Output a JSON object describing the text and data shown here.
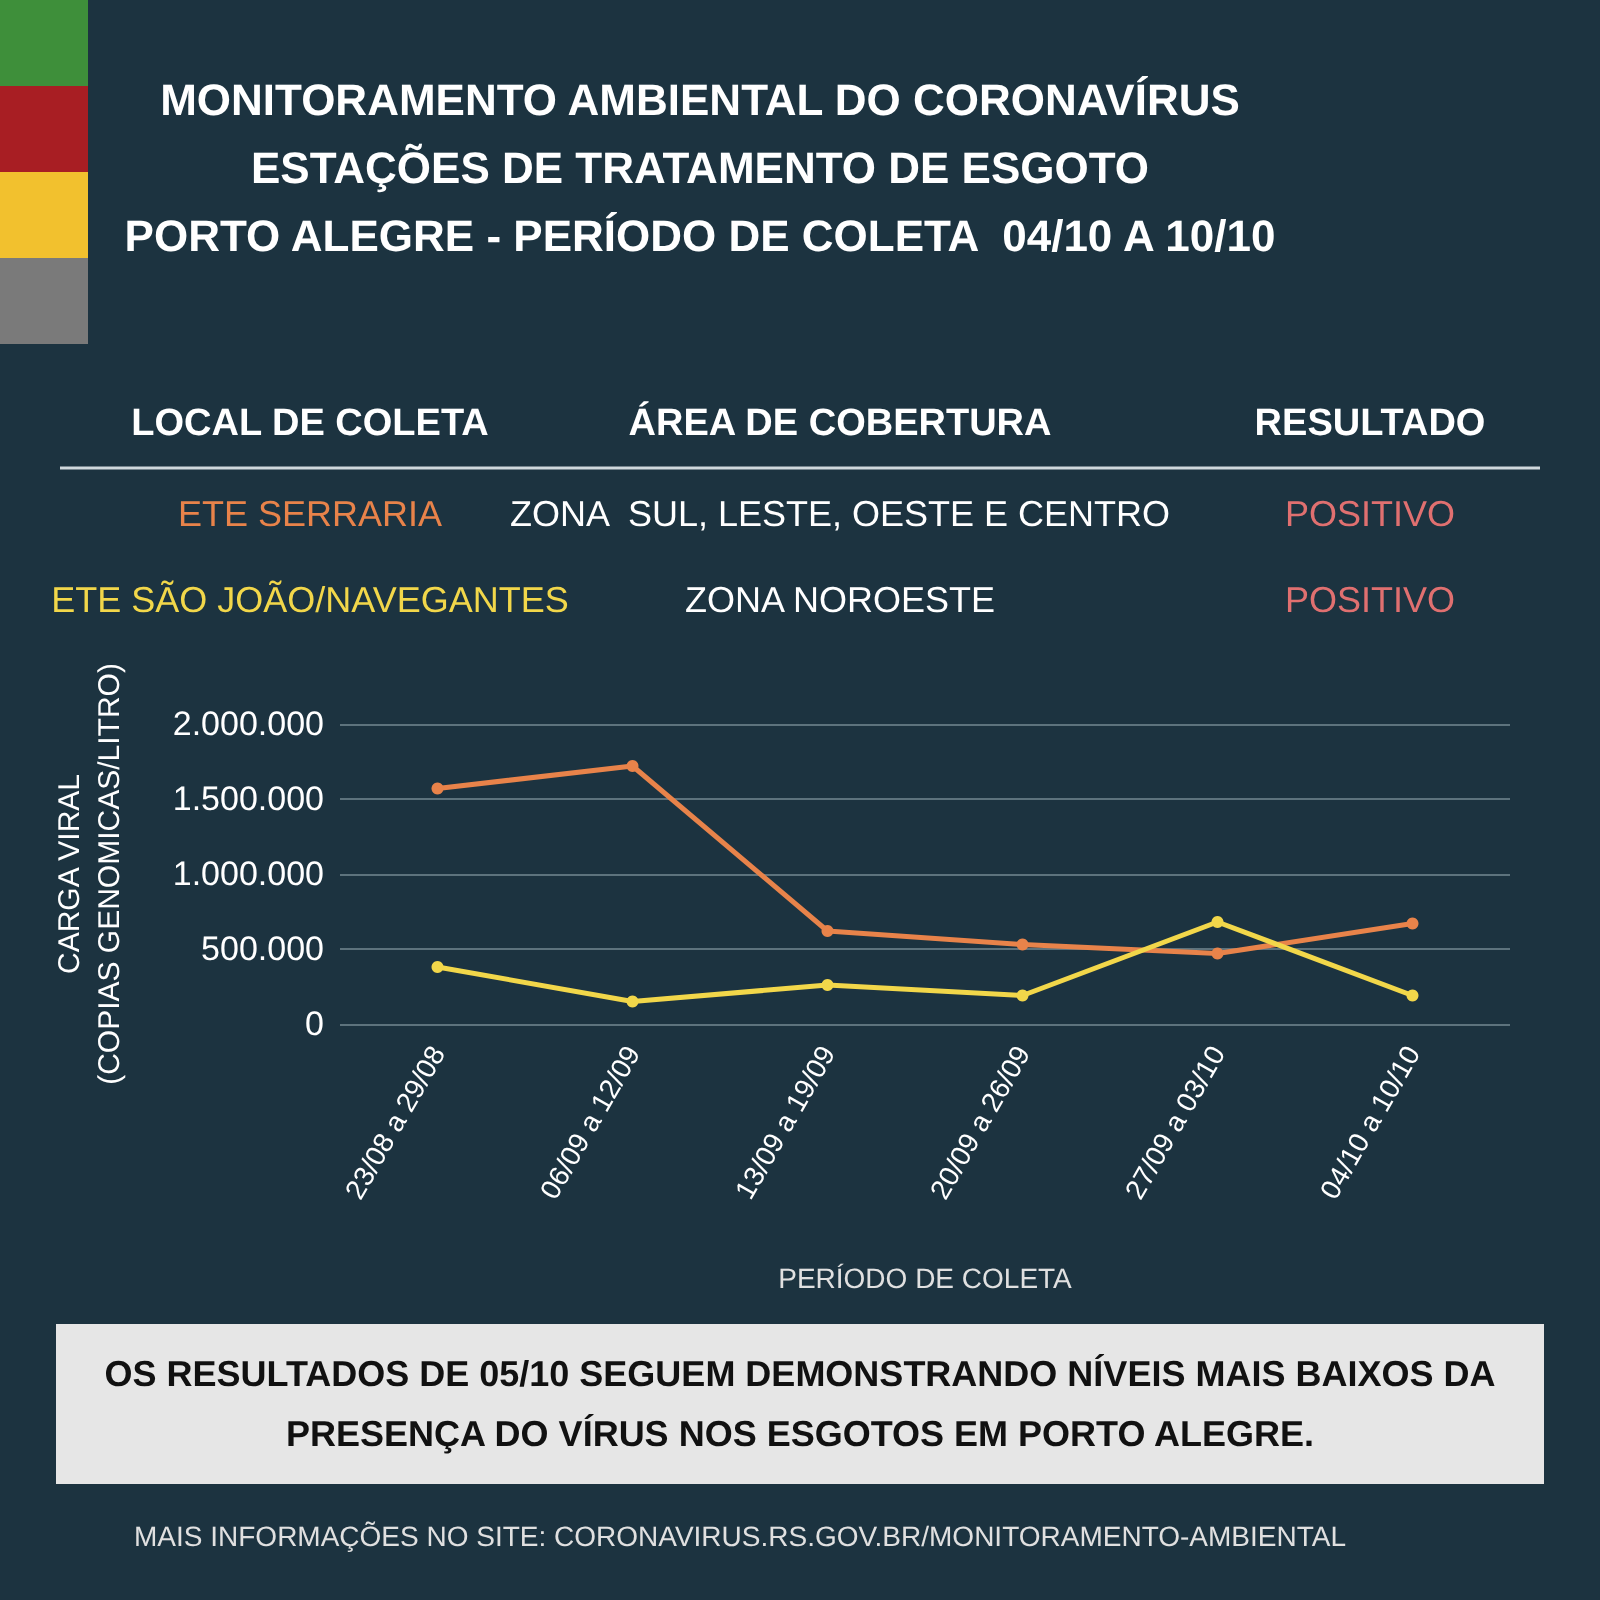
{
  "chart_data": {
    "type": "line",
    "title": "MONITORAMENTO AMBIENTAL DO CORONAVÍRUS\nESTAÇÕES DE TRATAMENTO DE ESGOTO\nPORTO ALEGRE - PERÍODO DE COLETA  04/10 A 10/10",
    "xlabel": "PERÍODO DE COLETA",
    "ylabel": "CARGA VIRAL\n(COPIAS GENOMICAS/LITRO)",
    "categories": [
      "23/08 a 29/08",
      "06/09 a 12/09",
      "13/09 a 19/09",
      "20/09 a 26/09",
      "27/09 a 03/10",
      "04/10 a 10/10"
    ],
    "series": [
      {
        "name": "ETE SERRARIA",
        "color": "#e8834a",
        "values": [
          1570000,
          1720000,
          620000,
          530000,
          470000,
          670000
        ]
      },
      {
        "name": "ETE SÃO JOÃO/NAVEGANTES",
        "color": "#f2d74a",
        "values": [
          380000,
          150000,
          260000,
          190000,
          680000,
          190000
        ]
      }
    ],
    "ylim": [
      0,
      2000000
    ],
    "yticks": [
      {
        "value": 0,
        "label": "0"
      },
      {
        "value": 500000,
        "label": "500.000"
      },
      {
        "value": 1000000,
        "label": "1.000.000"
      },
      {
        "value": 1500000,
        "label": "1.500.000"
      },
      {
        "value": 2000000,
        "label": "2.000.000"
      }
    ],
    "grid": "y",
    "marker": "circle",
    "line_style": "solid",
    "annotations": [
      "LOCAL DE COLETA",
      "ÁREA DE COBERTURA",
      "RESULTADO",
      "ZONA  SUL, LESTE, OESTE E CENTRO",
      "POSITIVO",
      "ZONA NOROESTE",
      "POSITIVO",
      "OS RESULTADOS DE 05/10 SEGUEM DEMONSTRANDO NÍVEIS MAIS BAIXOS DA\nPRESENÇA DO VÍRUS NOS ESGOTOS EM PORTO ALEGRE.",
      "MAIS INFORMAÇÕES NO SITE: CORONAVIRUS.RS.GOV.BR/MONITORAMENTO-AMBIENTAL"
    ]
  }
}
